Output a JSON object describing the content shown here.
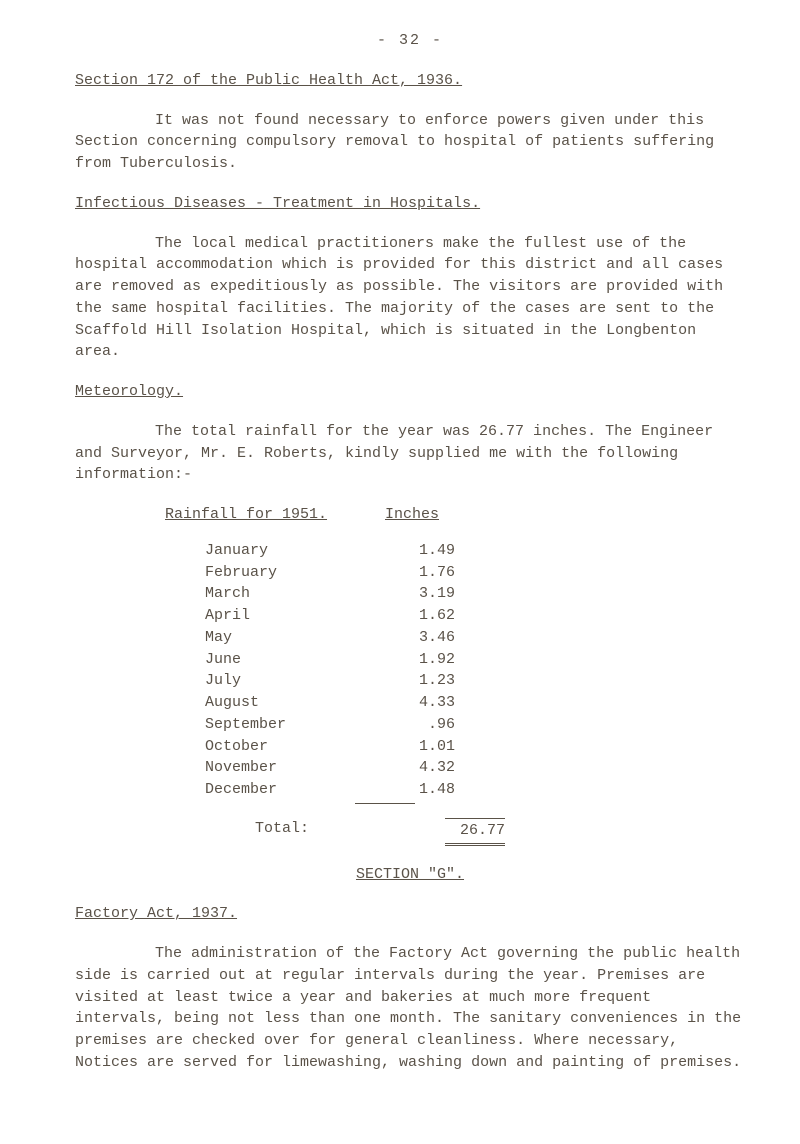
{
  "page_number": "- 32 -",
  "title": "Section 172 of the Public Health Act, 1936.",
  "para1": "It was not found necessary to enforce powers given under this Section concerning compulsory removal to hospital of patients suffering from Tuberculosis.",
  "heading2": "Infectious Diseases - Treatment in Hospitals.",
  "para2": "The local medical practitioners make the fullest use of the hospital accommodation which is provided for this district and all cases are removed as expeditiously as possible. The visitors are provided with the same hospital facilities. The majority of the cases are sent to the Scaffold Hill Isolation Hospital, which is situated in the Longbenton area.",
  "heading3": "Meteorology.",
  "para3a": "The total rainfall for the year was 26.77 inches. The Engineer and Surveyor, Mr. E. Roberts, kindly supplied me with the following information:-",
  "rain_header_left": "Rainfall for 1951.",
  "rain_header_right": "Inches",
  "rainfall": [
    {
      "month": "January",
      "value": "1.49"
    },
    {
      "month": "February",
      "value": "1.76"
    },
    {
      "month": "March",
      "value": "3.19"
    },
    {
      "month": "April",
      "value": "1.62"
    },
    {
      "month": "May",
      "value": "3.46"
    },
    {
      "month": "June",
      "value": "1.92"
    },
    {
      "month": "July",
      "value": "1.23"
    },
    {
      "month": "August",
      "value": "4.33"
    },
    {
      "month": "September",
      "value": " .96"
    },
    {
      "month": "October",
      "value": "1.01"
    },
    {
      "month": "November",
      "value": "4.32"
    },
    {
      "month": "December",
      "value": "1.48"
    }
  ],
  "total_label": "Total:",
  "total_value": "26.77",
  "section_g": "SECTION \"G\".",
  "heading4": "Factory Act, 1937.",
  "para4": "The administration of the Factory Act governing the public health side is carried out at regular intervals during the year. Premises are visited at least twice a year and bakeries at much more frequent intervals, being not less than one month. The sanitary conveniences in the premises are checked over for general cleanliness. Where necessary, Notices are served for limewashing, washing down and painting of premises."
}
